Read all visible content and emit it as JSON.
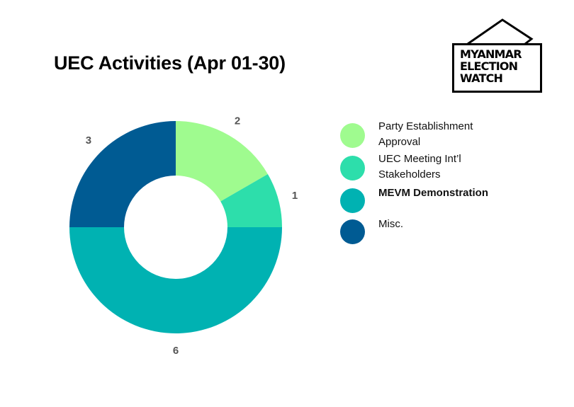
{
  "logo": {
    "lines": [
      "MYANMAR",
      "ELECTION",
      "WATCH"
    ]
  },
  "chart_data": {
    "type": "pie",
    "style": "donut",
    "title": "UEC Activities (Apr 01-30)",
    "categories": [
      "Party Establishment Approval",
      "UEC Meeting Int’l Stakeholders",
      "MEVM Demonstration",
      "Misc."
    ],
    "values": [
      2,
      1,
      6,
      3
    ],
    "colors": [
      "#9ffb8f",
      "#2ddeab",
      "#00b2b2",
      "#005b93"
    ],
    "data_labels": [
      "2",
      "1",
      "6",
      "3"
    ],
    "legend_position": "right",
    "legend_bold": [
      false,
      false,
      true,
      false
    ]
  }
}
